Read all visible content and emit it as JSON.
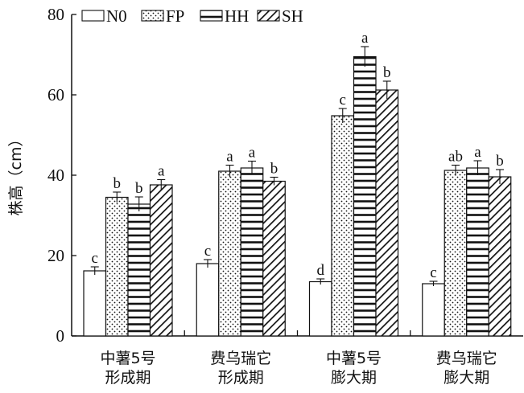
{
  "chart_data": {
    "type": "bar",
    "title": "",
    "xlabel": "",
    "ylabel": "株高（cm）",
    "ylim": [
      0,
      80
    ],
    "yticks": [
      0,
      20,
      40,
      60,
      80
    ],
    "grid": false,
    "legend_position": "top-left",
    "categories": [
      [
        "中薯5号",
        "形成期"
      ],
      [
        "费乌瑞它",
        "形成期"
      ],
      [
        "中薯5号",
        "膨大期"
      ],
      [
        "费乌瑞它",
        "膨大期"
      ]
    ],
    "series": [
      {
        "name": "N0",
        "pattern": "none",
        "values": [
          16.2,
          18.0,
          13.5,
          13.0
        ],
        "errors": [
          1.0,
          1.0,
          0.7,
          0.6
        ],
        "letters": [
          "c",
          "c",
          "d",
          "c"
        ]
      },
      {
        "name": "FP",
        "pattern": "dots",
        "values": [
          34.5,
          41.0,
          54.8,
          41.2
        ],
        "errors": [
          1.3,
          1.5,
          1.8,
          1.3
        ],
        "letters": [
          "b",
          "a",
          "c",
          "ab"
        ]
      },
      {
        "name": "HH",
        "pattern": "hlines",
        "values": [
          32.8,
          41.8,
          69.5,
          41.8
        ],
        "errors": [
          1.8,
          1.7,
          2.5,
          1.8
        ],
        "letters": [
          "b",
          "a",
          "a",
          "a"
        ]
      },
      {
        "name": "SH",
        "pattern": "diag",
        "values": [
          37.6,
          38.5,
          61.2,
          39.6
        ],
        "errors": [
          1.3,
          1.0,
          2.2,
          1.8
        ],
        "letters": [
          "a",
          "b",
          "b",
          "b"
        ]
      }
    ]
  }
}
